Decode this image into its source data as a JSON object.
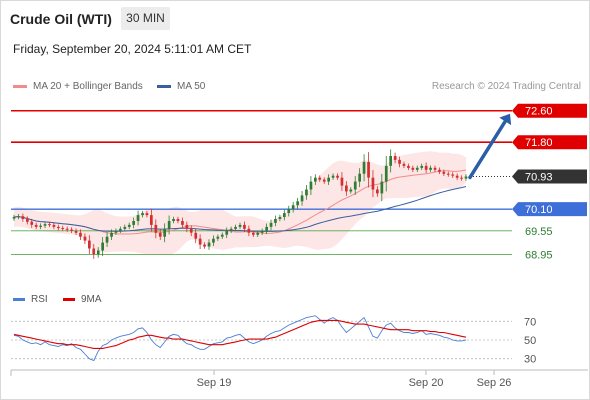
{
  "header": {
    "title": "Crude Oil (WTI)",
    "timeframe_label": "30 MIN",
    "datetime": "Friday, September 20, 2024 5:11:01 AM CET",
    "source": "Research © 2024 Trading Central"
  },
  "legend": {
    "bb_label": "MA 20 + Bollinger Bands",
    "bb_color": "#f28b8b",
    "ma50_label": "MA 50",
    "ma50_color": "#3a5fa0"
  },
  "rsi_legend": {
    "rsi_label": "RSI",
    "rsi_color": "#4a7fd4",
    "ma_label": "9MA",
    "ma_color": "#dd0000"
  },
  "colors": {
    "resistance": "#e00000",
    "pivot": "#3e6fd9",
    "support": "#5aa850",
    "up_candle": "#2e7d32",
    "down_candle": "#d32f2f",
    "current_tag": "#333333",
    "arrow": "#2a5ea8",
    "band_fill": "#fde3e3"
  },
  "chart_data": {
    "type": "candlestick",
    "price_axis": {
      "min": 68.3,
      "max": 73.0
    },
    "levels": [
      {
        "value": 72.6,
        "label": "72.60",
        "kind": "resistance"
      },
      {
        "value": 71.8,
        "label": "71.80",
        "kind": "resistance"
      },
      {
        "value": 70.93,
        "label": "70.93",
        "kind": "current"
      },
      {
        "value": 70.1,
        "label": "70.10",
        "kind": "pivot"
      },
      {
        "value": 69.55,
        "label": "69.55",
        "kind": "support"
      },
      {
        "value": 68.95,
        "label": "68.95",
        "kind": "support"
      }
    ],
    "x_labels": [
      "Sep 19",
      "Sep 20",
      "Sep 26"
    ],
    "forecast_arrow": {
      "from": 70.93,
      "to": 72.6
    },
    "close_series": [
      69.9,
      69.92,
      69.85,
      69.78,
      69.7,
      69.65,
      69.68,
      69.72,
      69.7,
      69.65,
      69.62,
      69.6,
      69.58,
      69.55,
      69.5,
      69.4,
      69.3,
      69.1,
      68.95,
      69.05,
      69.25,
      69.4,
      69.5,
      69.55,
      69.6,
      69.65,
      69.7,
      69.8,
      69.95,
      70.0,
      69.95,
      69.7,
      69.5,
      69.4,
      69.6,
      69.8,
      69.85,
      69.8,
      69.7,
      69.6,
      69.5,
      69.35,
      69.2,
      69.15,
      69.25,
      69.35,
      69.4,
      69.45,
      69.55,
      69.6,
      69.65,
      69.7,
      69.6,
      69.5,
      69.45,
      69.5,
      69.55,
      69.65,
      69.75,
      69.85,
      69.9,
      70.0,
      70.1,
      70.2,
      70.3,
      70.45,
      70.6,
      70.8,
      70.9,
      70.85,
      70.8,
      70.9,
      70.95,
      70.9,
      70.7,
      70.55,
      70.6,
      70.8,
      71.0,
      71.3,
      70.9,
      70.6,
      70.5,
      70.8,
      71.2,
      71.45,
      71.35,
      71.25,
      71.2,
      71.15,
      71.1,
      71.15,
      71.2,
      71.1,
      71.15,
      71.1,
      71.05,
      71.0,
      70.98,
      70.95,
      70.9,
      70.88,
      70.93
    ],
    "rsi": {
      "axis": {
        "min": 20,
        "max": 80,
        "ticks": [
          70,
          50,
          30
        ]
      },
      "rsi_series": [
        55,
        54,
        50,
        48,
        46,
        47,
        45,
        48,
        45,
        44,
        43,
        45,
        44,
        46,
        42,
        40,
        35,
        30,
        28,
        38,
        44,
        46,
        50,
        52,
        54,
        55,
        56,
        58,
        62,
        63,
        58,
        50,
        45,
        42,
        48,
        54,
        56,
        55,
        50,
        46,
        45,
        42,
        40,
        40,
        43,
        46,
        47,
        48,
        52,
        53,
        55,
        56,
        52,
        48,
        46,
        48,
        50,
        54,
        57,
        59,
        60,
        63,
        66,
        68,
        70,
        72,
        74,
        75,
        76,
        72,
        68,
        72,
        74,
        71,
        64,
        58,
        62,
        66,
        70,
        74,
        64,
        54,
        52,
        60,
        66,
        68,
        63,
        60,
        58,
        58,
        57,
        58,
        60,
        56,
        57,
        56,
        55,
        53,
        52,
        50,
        49,
        49,
        50
      ],
      "ma_series": [
        56,
        55,
        54,
        53,
        52,
        51,
        50,
        49,
        48,
        47,
        46,
        46,
        45,
        45,
        45,
        44,
        43,
        42,
        41,
        41,
        41,
        42,
        43,
        44,
        46,
        48,
        50,
        51,
        53,
        54,
        55,
        55,
        54,
        53,
        52,
        52,
        51,
        51,
        51,
        50,
        49,
        48,
        47,
        46,
        45,
        45,
        45,
        45,
        46,
        47,
        48,
        49,
        50,
        51,
        51,
        51,
        51,
        51,
        52,
        53,
        55,
        57,
        59,
        61,
        63,
        65,
        67,
        69,
        70,
        71,
        71,
        71,
        71,
        71,
        70,
        69,
        68,
        67,
        67,
        67,
        66,
        65,
        64,
        63,
        62,
        61,
        61,
        61,
        61,
        61,
        60,
        60,
        60,
        60,
        59,
        59,
        58,
        58,
        57,
        56,
        55,
        54,
        53
      ]
    }
  }
}
